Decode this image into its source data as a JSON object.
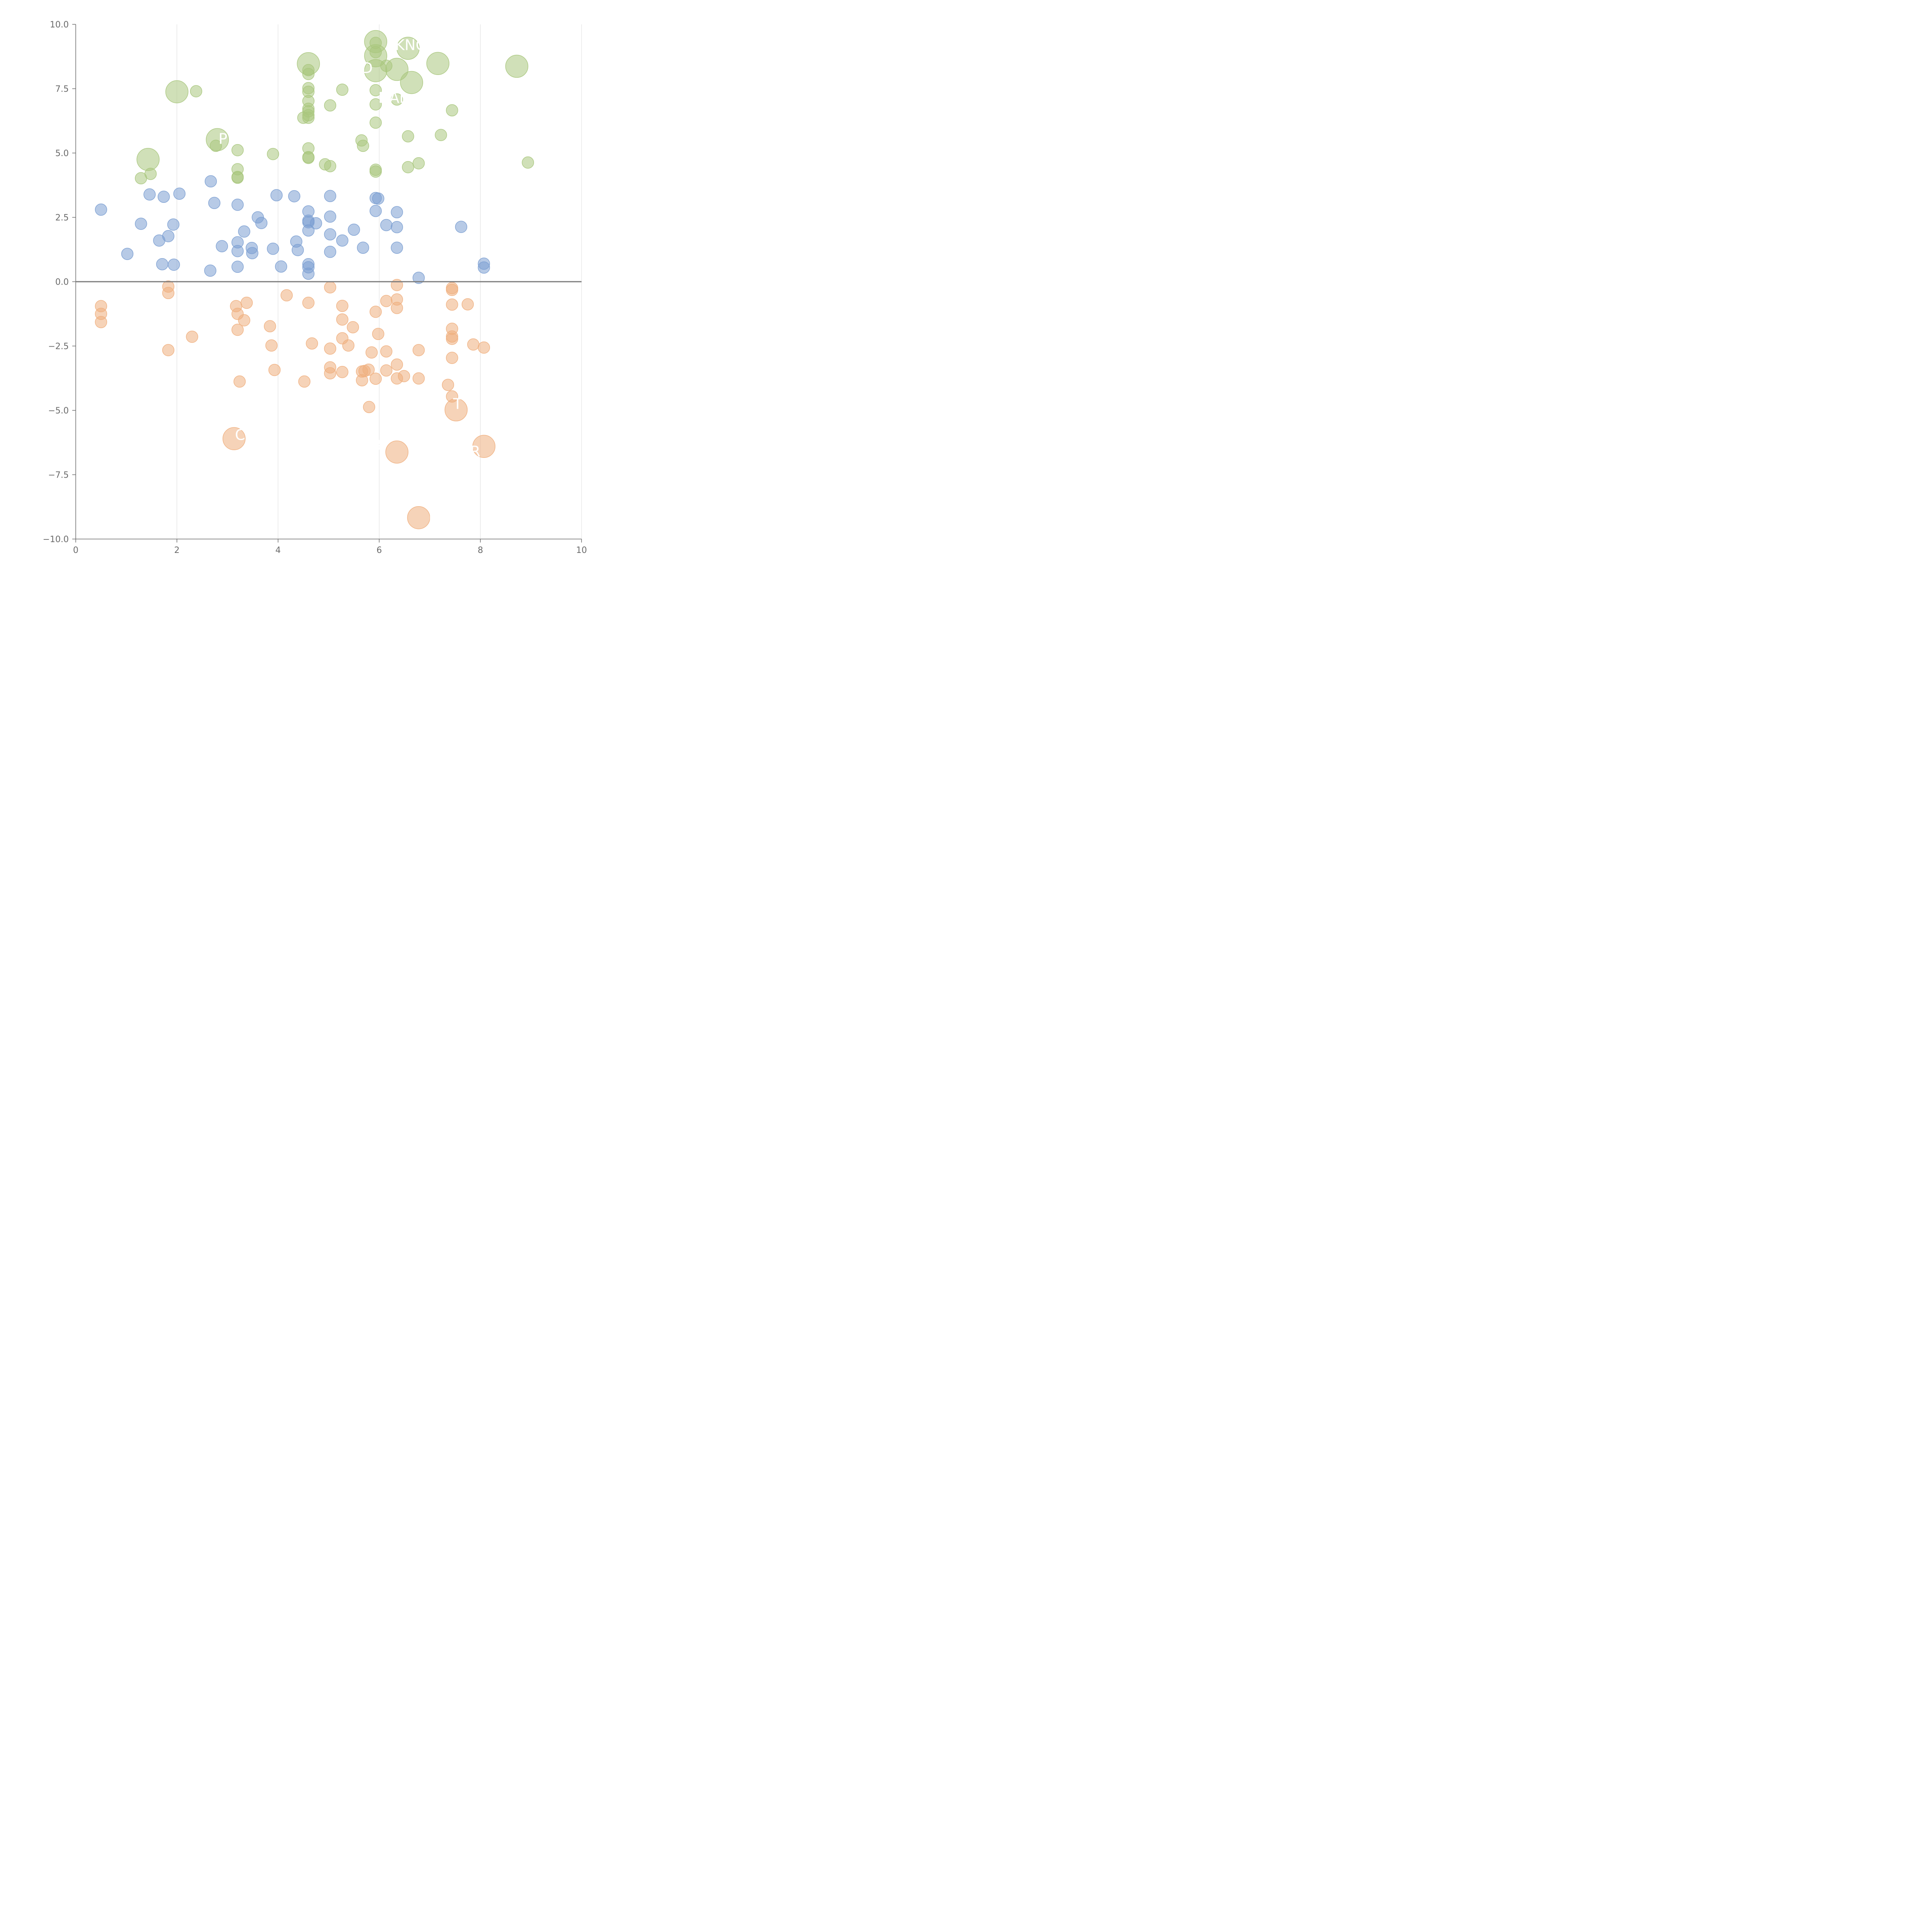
{
  "chart_data": {
    "type": "scatter",
    "xlim": [
      0,
      10
    ],
    "ylim": [
      -10,
      10
    ],
    "grid": {
      "x": true,
      "y": false
    },
    "x_ticks": [
      {
        "value": 0,
        "label": "0"
      },
      {
        "value": 2,
        "label": "2"
      },
      {
        "value": 4,
        "label": "4"
      },
      {
        "value": 6,
        "label": "6"
      },
      {
        "value": 8,
        "label": "8"
      },
      {
        "value": 10,
        "label": "10"
      }
    ],
    "y_ticks": [
      {
        "value": 10,
        "label": "10.0"
      },
      {
        "value": 7.5,
        "label": "7.5"
      },
      {
        "value": 5,
        "label": "5.0"
      },
      {
        "value": 2.5,
        "label": "2.5"
      },
      {
        "value": 0,
        "label": "0.0"
      },
      {
        "value": -2.5,
        "label": "−2.5"
      },
      {
        "value": -5,
        "label": "−5.0"
      },
      {
        "value": -7.5,
        "label": "−7.5"
      },
      {
        "value": -10,
        "label": "−10.0"
      }
    ],
    "reference_line_y": 0,
    "series": [
      {
        "color": "#a9c77d",
        "points": [
          [
            2.0,
            7.38,
            "large"
          ],
          [
            2.38,
            7.4
          ],
          [
            1.43,
            4.75,
            "large"
          ],
          [
            1.48,
            4.19
          ],
          [
            1.29,
            4.02
          ],
          [
            2.8,
            5.52,
            "large"
          ],
          [
            2.77,
            5.28
          ],
          [
            3.2,
            5.11
          ],
          [
            3.2,
            4.37
          ],
          [
            3.2,
            4.07
          ],
          [
            3.2,
            4.04
          ],
          [
            3.9,
            4.96
          ],
          [
            4.5,
            6.37
          ],
          [
            4.6,
            8.47,
            "large"
          ],
          [
            4.6,
            8.22
          ],
          [
            4.6,
            8.07
          ],
          [
            4.6,
            7.52
          ],
          [
            4.6,
            7.38
          ],
          [
            4.6,
            7.02
          ],
          [
            4.6,
            6.72
          ],
          [
            4.6,
            6.62
          ],
          [
            4.6,
            6.47
          ],
          [
            4.6,
            6.37
          ],
          [
            4.6,
            5.18
          ],
          [
            4.6,
            4.84
          ],
          [
            4.6,
            4.81
          ],
          [
            4.93,
            4.56
          ],
          [
            5.03,
            4.49
          ],
          [
            5.03,
            6.85
          ],
          [
            5.27,
            7.46
          ],
          [
            5.65,
            5.49
          ],
          [
            5.68,
            5.28
          ],
          [
            5.93,
            9.33,
            "large"
          ],
          [
            5.93,
            9.28
          ],
          [
            5.93,
            8.92
          ],
          [
            5.93,
            8.78,
            "large"
          ],
          [
            5.93,
            8.2,
            "large"
          ],
          [
            5.93,
            7.44
          ],
          [
            5.93,
            6.89
          ],
          [
            5.93,
            6.18
          ],
          [
            5.93,
            4.35
          ],
          [
            5.93,
            4.28
          ],
          [
            6.14,
            8.39
          ],
          [
            6.35,
            8.25,
            "large"
          ],
          [
            6.35,
            7.08
          ],
          [
            6.57,
            9.07,
            "large"
          ],
          [
            6.57,
            5.65
          ],
          [
            6.57,
            4.45
          ],
          [
            6.64,
            7.74,
            "large"
          ],
          [
            6.78,
            4.6
          ],
          [
            7.16,
            8.48,
            "large"
          ],
          [
            7.22,
            5.7
          ],
          [
            7.44,
            6.66
          ],
          [
            8.72,
            8.37,
            "large"
          ],
          [
            8.94,
            4.63
          ]
        ]
      },
      {
        "color": "#7b9fd2",
        "points": [
          [
            0.5,
            2.8
          ],
          [
            1.02,
            1.08
          ],
          [
            1.29,
            2.25
          ],
          [
            1.46,
            3.39
          ],
          [
            1.65,
            1.6
          ],
          [
            1.71,
            0.68
          ],
          [
            1.74,
            3.3
          ],
          [
            1.83,
            1.77
          ],
          [
            1.93,
            2.22
          ],
          [
            1.94,
            0.66
          ],
          [
            2.05,
            3.42
          ],
          [
            2.66,
            0.43
          ],
          [
            2.67,
            3.9
          ],
          [
            2.74,
            3.06
          ],
          [
            2.89,
            1.38
          ],
          [
            3.2,
            2.99
          ],
          [
            3.2,
            1.53
          ],
          [
            3.2,
            1.19
          ],
          [
            3.2,
            0.58
          ],
          [
            3.33,
            1.95
          ],
          [
            3.48,
            1.31
          ],
          [
            3.49,
            1.11
          ],
          [
            3.6,
            2.5
          ],
          [
            3.67,
            2.28
          ],
          [
            3.9,
            1.28
          ],
          [
            3.97,
            3.36
          ],
          [
            4.06,
            0.59
          ],
          [
            4.32,
            3.32
          ],
          [
            4.36,
            1.56
          ],
          [
            4.39,
            1.23
          ],
          [
            4.6,
            2.73
          ],
          [
            4.6,
            2.37
          ],
          [
            4.6,
            2.31
          ],
          [
            4.6,
            1.99
          ],
          [
            4.6,
            0.68
          ],
          [
            4.6,
            0.56
          ],
          [
            4.6,
            0.31
          ],
          [
            4.75,
            2.27
          ],
          [
            5.03,
            3.33
          ],
          [
            5.03,
            2.53
          ],
          [
            5.03,
            1.84
          ],
          [
            5.03,
            1.16
          ],
          [
            5.27,
            1.6
          ],
          [
            5.5,
            2.02
          ],
          [
            5.68,
            1.32
          ],
          [
            5.93,
            3.25
          ],
          [
            5.93,
            2.75
          ],
          [
            5.98,
            3.23
          ],
          [
            6.14,
            2.2
          ],
          [
            6.35,
            2.7
          ],
          [
            6.35,
            2.12
          ],
          [
            6.35,
            1.32
          ],
          [
            6.78,
            0.15
          ],
          [
            7.62,
            2.13
          ],
          [
            8.07,
            0.7
          ],
          [
            8.07,
            0.55
          ]
        ]
      },
      {
        "color": "#efaf7e",
        "points": [
          [
            0.5,
            -0.95
          ],
          [
            0.5,
            -1.25
          ],
          [
            0.5,
            -1.57
          ],
          [
            1.83,
            -0.19
          ],
          [
            1.83,
            -0.44
          ],
          [
            1.83,
            -2.66
          ],
          [
            2.3,
            -2.14
          ],
          [
            3.13,
            -6.1,
            "large"
          ],
          [
            3.17,
            -0.95
          ],
          [
            3.2,
            -1.25
          ],
          [
            3.2,
            -1.87
          ],
          [
            3.24,
            -3.88
          ],
          [
            3.33,
            -1.5
          ],
          [
            3.38,
            -0.82
          ],
          [
            3.84,
            -1.73
          ],
          [
            3.87,
            -2.48
          ],
          [
            3.93,
            -3.43
          ],
          [
            4.17,
            -0.53
          ],
          [
            4.52,
            -3.88
          ],
          [
            4.6,
            -0.82
          ],
          [
            4.67,
            -2.4
          ],
          [
            5.03,
            -0.22
          ],
          [
            5.03,
            -2.6
          ],
          [
            5.03,
            -3.33
          ],
          [
            5.03,
            -3.56
          ],
          [
            5.27,
            -0.94
          ],
          [
            5.27,
            -1.47
          ],
          [
            5.27,
            -2.2
          ],
          [
            5.27,
            -3.51
          ],
          [
            5.39,
            -2.48
          ],
          [
            5.48,
            -1.77
          ],
          [
            5.66,
            -3.49
          ],
          [
            5.66,
            -3.83
          ],
          [
            5.71,
            -3.47
          ],
          [
            5.79,
            -3.42
          ],
          [
            5.8,
            -4.87
          ],
          [
            5.85,
            -2.75
          ],
          [
            5.93,
            -1.17
          ],
          [
            5.93,
            -3.77
          ],
          [
            5.98,
            -2.03
          ],
          [
            6.14,
            -0.75
          ],
          [
            6.14,
            -2.71
          ],
          [
            6.14,
            -3.45
          ],
          [
            6.35,
            -0.13
          ],
          [
            6.35,
            -0.69
          ],
          [
            6.35,
            -1.02
          ],
          [
            6.35,
            -3.22
          ],
          [
            6.35,
            -3.76
          ],
          [
            6.35,
            -6.62,
            "large"
          ],
          [
            6.49,
            -3.67
          ],
          [
            6.78,
            -2.66
          ],
          [
            6.78,
            -3.76
          ],
          [
            6.78,
            -9.17,
            "large"
          ],
          [
            7.36,
            -4.01
          ],
          [
            7.44,
            -0.25
          ],
          [
            7.44,
            -0.32
          ],
          [
            7.44,
            -0.89
          ],
          [
            7.44,
            -1.83
          ],
          [
            7.44,
            -2.13
          ],
          [
            7.44,
            -2.22
          ],
          [
            7.44,
            -2.96
          ],
          [
            7.44,
            -4.46
          ],
          [
            7.52,
            -4.98,
            "large"
          ],
          [
            7.75,
            -0.88
          ],
          [
            7.86,
            -2.44
          ],
          [
            8.07,
            -2.56
          ],
          [
            8.07,
            -6.4,
            "large"
          ]
        ]
      }
    ],
    "annotations": [
      {
        "text": "KNO",
        "x": 6.63,
        "y": 9.2
      },
      {
        "text": "D",
        "x": 5.76,
        "y": 8.3
      },
      {
        "text": "DAL",
        "x": 6.27,
        "y": 7.15
      },
      {
        "text": "P",
        "x": 2.91,
        "y": 5.55
      },
      {
        "text": "M",
        "x": 7.1,
        "y": -9.2
      },
      {
        "text": "C",
        "x": 3.25,
        "y": -5.95
      },
      {
        "text": "B",
        "x": 5.95,
        "y": -6.35
      },
      {
        "text": "R",
        "x": 7.9,
        "y": -6.6
      },
      {
        "text": "T",
        "x": 7.55,
        "y": -4.75
      }
    ]
  }
}
